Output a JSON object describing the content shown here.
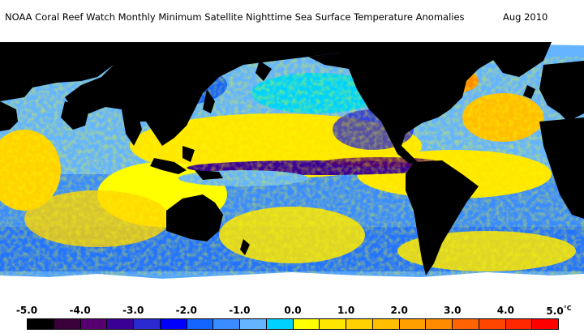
{
  "title": "NOAA Coral Reef Watch Monthly Minimum Satellite Nighttime Sea Surface Temperature Anomalies",
  "date": "Aug 2010",
  "units": "°C",
  "colorbar": {
    "tick_labels": [
      "-5.0",
      "-4.0",
      "-3.0",
      "-2.0",
      "-1.0",
      "0.0",
      "1.0",
      "2.0",
      "3.0",
      "4.0",
      "5.0"
    ],
    "tick_values": [
      -5,
      -4,
      -3,
      -2,
      -1,
      0,
      1,
      2,
      3,
      4,
      5
    ],
    "range": [
      -5.0,
      5.0
    ],
    "colors": [
      "#000000",
      "#3a003a",
      "#55006e",
      "#3a0096",
      "#2a2ad0",
      "#0000ff",
      "#1464ff",
      "#3a8cff",
      "#64b4ff",
      "#00d2ff",
      "#ffff00",
      "#ffe600",
      "#ffd200",
      "#ffbe00",
      "#ffa000",
      "#ff8c00",
      "#ff6400",
      "#ff4600",
      "#ff2800",
      "#ff0000"
    ]
  },
  "map": {
    "land_color": "#000000",
    "ice_color": "#ffffff",
    "projection": "equirectangular",
    "center_longitude": 180
  }
}
